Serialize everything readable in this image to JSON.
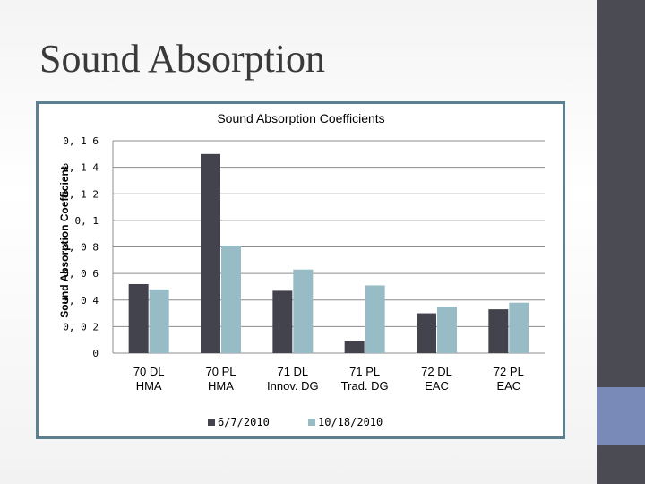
{
  "slide": {
    "title": "Sound Absorption"
  },
  "colors": {
    "series1": "#43434d",
    "series2": "#98bcc6",
    "frame": "#5b8191",
    "sidebar": "#4b4b54",
    "sidebar_accent": "#7a8ab8"
  },
  "chart_data": {
    "type": "bar",
    "title": "Sound Absorption Coefficients",
    "xlabel": "",
    "ylabel": "Sound Absorption Coefficient",
    "ylim": [
      0,
      0.16
    ],
    "yticks": [
      0,
      0.02,
      0.04,
      0.06,
      0.08,
      0.1,
      0.12,
      0.14,
      0.16
    ],
    "ytick_labels": [
      "0",
      "0, 0 2",
      "0, 0 4",
      "0, 0 6",
      "0, 0 8",
      "0, 1",
      "0, 1 2",
      "0, 1 4",
      "0, 1 6"
    ],
    "grid": true,
    "legend_position": "bottom",
    "categories": [
      [
        "70 DL",
        "HMA"
      ],
      [
        "70 PL",
        "HMA"
      ],
      [
        "71 DL",
        "Innov. DG"
      ],
      [
        "71 PL",
        "Trad. DG"
      ],
      [
        "72 DL",
        "EAC"
      ],
      [
        "72 PL",
        "EAC"
      ]
    ],
    "series": [
      {
        "name": "6/7/2010",
        "values": [
          0.052,
          0.15,
          0.047,
          0.009,
          0.03,
          0.033
        ]
      },
      {
        "name": "10/18/2010",
        "values": [
          0.048,
          0.081,
          0.063,
          0.051,
          0.035,
          0.038
        ]
      }
    ]
  }
}
